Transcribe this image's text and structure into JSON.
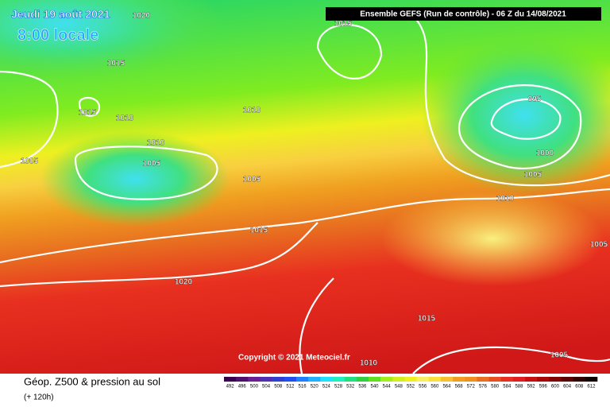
{
  "header": {
    "date": "Jeudi 19 août 2021",
    "local_time": "8:00 locale",
    "run": "Ensemble GEFS  (Run de contrôle)  -  06 Z du 14/08/2021"
  },
  "copyright": "Copyright © 2021 Meteociel.fr",
  "footer": {
    "title": "Géop. Z500 & pression au sol",
    "lead": "(+ 120h)"
  },
  "isobars": [
    1020,
    1015,
    1015,
    1015,
    1010,
    1010,
    1010,
    1005,
    1005,
    1005,
    1015,
    1020,
    995,
    1000,
    1005,
    1010,
    1005,
    1015,
    1005,
    1010
  ],
  "colorbar": {
    "values": [
      492,
      496,
      500,
      504,
      508,
      512,
      516,
      520,
      524,
      528,
      532,
      536,
      540,
      544,
      548,
      552,
      556,
      560,
      564,
      568,
      572,
      576,
      580,
      584,
      588,
      592,
      596,
      600,
      604,
      608,
      612
    ],
    "colors": [
      "#3a0050",
      "#50106e",
      "#6a2090",
      "#5030b0",
      "#3040d0",
      "#2050f0",
      "#2080ff",
      "#20b0ff",
      "#20e0ff",
      "#20f0c0",
      "#20e080",
      "#30d040",
      "#60e020",
      "#a0f020",
      "#d0f020",
      "#f0f020",
      "#f8f060",
      "#f8e040",
      "#f8c030",
      "#f0a020",
      "#f09020",
      "#e87020",
      "#e85020",
      "#e83020",
      "#e02020",
      "#c81010",
      "#a80808",
      "#800404",
      "#580202",
      "#300000",
      "#100000"
    ]
  }
}
